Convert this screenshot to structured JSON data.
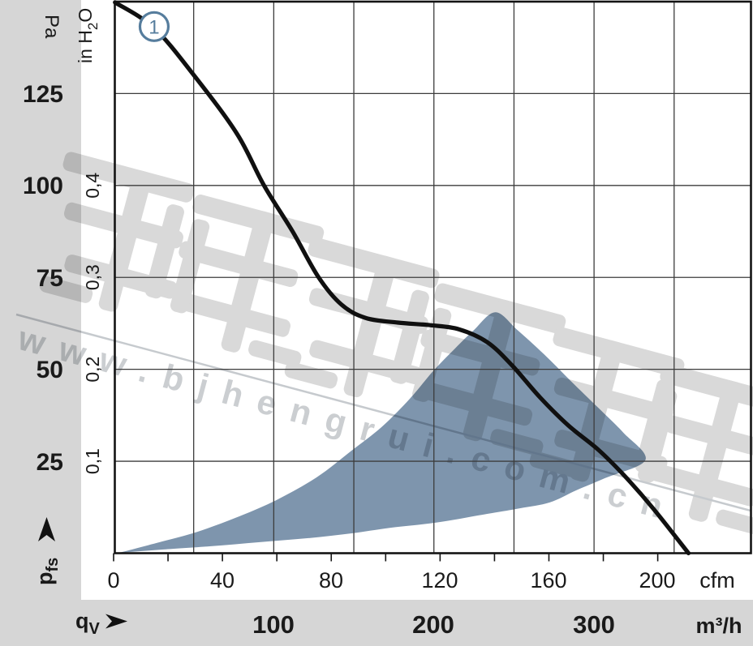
{
  "colors": {
    "band_gray": "#d6d6d6",
    "grid": "#3c3c3c",
    "border": "#141414",
    "curve": "#101010",
    "region_blue": "#7e95ad",
    "marker_blue": "#567d9d",
    "watermark_gray": "#d9d9d9"
  },
  "axes": {
    "pa": {
      "unit": "Pa",
      "ticks": [
        "125",
        "100",
        "75",
        "50",
        "25"
      ]
    },
    "inh2o": {
      "unit_parts": [
        "in H",
        "2",
        "O"
      ],
      "ticks": [
        "0,4",
        "0,3",
        "0,2",
        "0,1"
      ]
    },
    "cfm": {
      "unit": "cfm",
      "ticks": [
        "0",
        "40",
        "80",
        "120",
        "160",
        "200"
      ]
    },
    "m3h": {
      "unit": "m³/h",
      "ticks": [
        "100",
        "200",
        "300"
      ]
    },
    "y_symbol": {
      "base": "p",
      "sub": "fs"
    },
    "x_symbol": {
      "base": "q",
      "sub": "V"
    }
  },
  "curve_marker": {
    "label": "1"
  },
  "watermark": {
    "url": "www.bjhengrui.com.cn",
    "cjk_text": "恒瑞宏晟机电"
  },
  "chart_data": {
    "type": "line",
    "description": "Fan characteristic: free-stream static pressure pfs vs volume flow qV, curve 1 with permissible operating region",
    "x_axes": [
      {
        "label": "cfm",
        "ticks": [
          0,
          20,
          40,
          60,
          80,
          100,
          120,
          140,
          160,
          180,
          200
        ],
        "labeled_ticks": [
          0,
          40,
          80,
          120,
          160,
          200
        ],
        "range": [
          0,
          234.5
        ]
      },
      {
        "label": "m³/h",
        "gridlines": [
          50,
          100,
          150,
          200,
          250,
          300,
          350
        ],
        "labeled_ticks": [
          100,
          200,
          300
        ]
      }
    ],
    "y_axes": [
      {
        "label": "Pa",
        "ticks": [
          25,
          50,
          75,
          100,
          125
        ],
        "range": [
          0,
          150
        ]
      },
      {
        "label": "in H2O",
        "ticks": [
          0.1,
          0.2,
          0.3,
          0.4
        ]
      }
    ],
    "series": [
      {
        "name": "1",
        "marker_point_cfm_pa": [
          14.9,
          143.2
        ],
        "points_cfm_pa": [
          [
            0.5,
            149.8
          ],
          [
            14.9,
            142.8
          ],
          [
            29.9,
            129.6
          ],
          [
            45.4,
            114.0
          ],
          [
            55.2,
            100.1
          ],
          [
            65.7,
            87.6
          ],
          [
            75.2,
            75.2
          ],
          [
            83.6,
            67.7
          ],
          [
            92.5,
            64.0
          ],
          [
            104.5,
            62.7
          ],
          [
            116.4,
            62.0
          ],
          [
            126.9,
            60.9
          ],
          [
            137.3,
            57.4
          ],
          [
            146.3,
            51.2
          ],
          [
            156.7,
            42.4
          ],
          [
            167.2,
            34.7
          ],
          [
            178.2,
            28.1
          ],
          [
            188.1,
            20.8
          ],
          [
            198.5,
            12.0
          ],
          [
            211.3,
            0.0
          ]
        ]
      }
    ],
    "operating_region_cfm_pa": [
      [
        2.1,
        0.1
      ],
      [
        17.9,
        3.2
      ],
      [
        30.7,
        5.8
      ],
      [
        44.8,
        9.6
      ],
      [
        59.7,
        14.4
      ],
      [
        74.6,
        20.6
      ],
      [
        87.5,
        27.9
      ],
      [
        98.5,
        34.3
      ],
      [
        108.9,
        42.0
      ],
      [
        117.3,
        49.4
      ],
      [
        125.4,
        55.6
      ],
      [
        132.2,
        60.5
      ],
      [
        140.3,
        65.5
      ],
      [
        148.4,
        60.7
      ],
      [
        158.2,
        54.1
      ],
      [
        168.1,
        46.8
      ],
      [
        178.2,
        39.5
      ],
      [
        187.2,
        32.9
      ],
      [
        195.5,
        25.4
      ],
      [
        180.6,
        20.4
      ],
      [
        170.1,
        17.1
      ],
      [
        160.3,
        13.8
      ],
      [
        149.3,
        12.2
      ],
      [
        137.3,
        10.7
      ],
      [
        118.5,
        8.3
      ],
      [
        101.5,
        6.9
      ],
      [
        87.5,
        5.4
      ],
      [
        71.6,
        4.1
      ],
      [
        53.7,
        3.0
      ],
      [
        35.8,
        1.9
      ],
      [
        17.9,
        1.0
      ]
    ]
  }
}
